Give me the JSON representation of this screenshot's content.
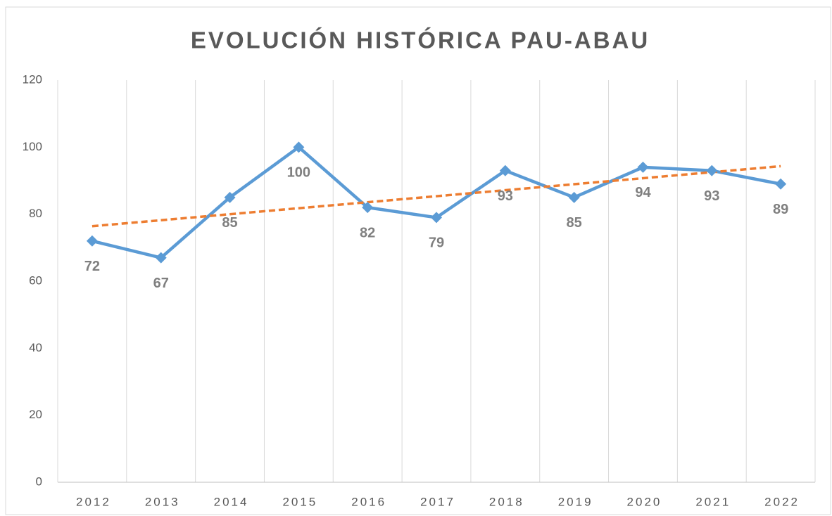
{
  "chart_data": {
    "type": "line",
    "title": "EVOLUCIÓN HISTÓRICA PAU-ABAU",
    "categories": [
      "2012",
      "2013",
      "2014",
      "2015",
      "2016",
      "2017",
      "2018",
      "2019",
      "2020",
      "2021",
      "2022"
    ],
    "series": [
      {
        "name": "PAU-ABAU",
        "color": "#5b9bd5",
        "values": [
          72,
          67,
          85,
          100,
          82,
          79,
          93,
          85,
          94,
          93,
          89
        ]
      }
    ],
    "trendline": "linear",
    "trendline_color": "#ed7d31",
    "ylim": [
      0,
      120
    ],
    "yticks": [
      0,
      20,
      40,
      60,
      80,
      100,
      120
    ],
    "grid": "vertical"
  }
}
